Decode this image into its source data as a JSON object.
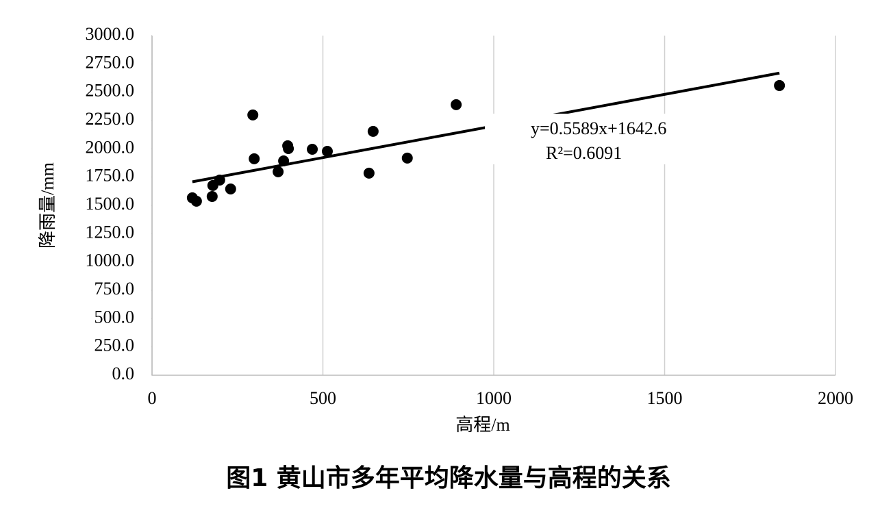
{
  "chart_data": {
    "type": "scatter",
    "caption": "图1  黄山市多年平均降水量与高程的关系",
    "x_label": "高程/m",
    "y_label": "降雨量/mm",
    "x": [
      118,
      130,
      176,
      178,
      198,
      230,
      295,
      299,
      369,
      385,
      397,
      399,
      469,
      513,
      635,
      647,
      747,
      890,
      1836
    ],
    "values": [
      1567,
      1537,
      1579,
      1676,
      1724,
      1645,
      2299,
      1912,
      1797,
      1893,
      2027,
      2002,
      1996,
      1978,
      1785,
      2154,
      1918,
      2390,
      2559
    ],
    "color": "#000000",
    "xlim": [
      0,
      2000
    ],
    "xticks": [
      0,
      500,
      1000,
      1500,
      2000
    ],
    "ylim": [
      0,
      3000
    ],
    "yticks": [
      {
        "value": 0,
        "label": "0.0"
      },
      {
        "value": 250,
        "label": "250.0"
      },
      {
        "value": 500,
        "label": "500.0"
      },
      {
        "value": 750,
        "label": "750.0"
      },
      {
        "value": 1000,
        "label": "1000.0"
      },
      {
        "value": 1250,
        "label": "1250.0"
      },
      {
        "value": 1500,
        "label": "1500.0"
      },
      {
        "value": 1750,
        "label": "1750.0"
      },
      {
        "value": 2000,
        "label": "2000.0"
      },
      {
        "value": 2250,
        "label": "2250.0"
      },
      {
        "value": 2500,
        "label": "2500.0"
      },
      {
        "value": 2750,
        "label": "2750.0"
      },
      {
        "value": 3000,
        "label": "3000.0"
      }
    ],
    "grid": "x",
    "trendline": {
      "slope": 0.5589,
      "intercept": 1642.6,
      "equation": "y=0.5589x+1642.6",
      "r2": "R²=0.6091"
    }
  }
}
